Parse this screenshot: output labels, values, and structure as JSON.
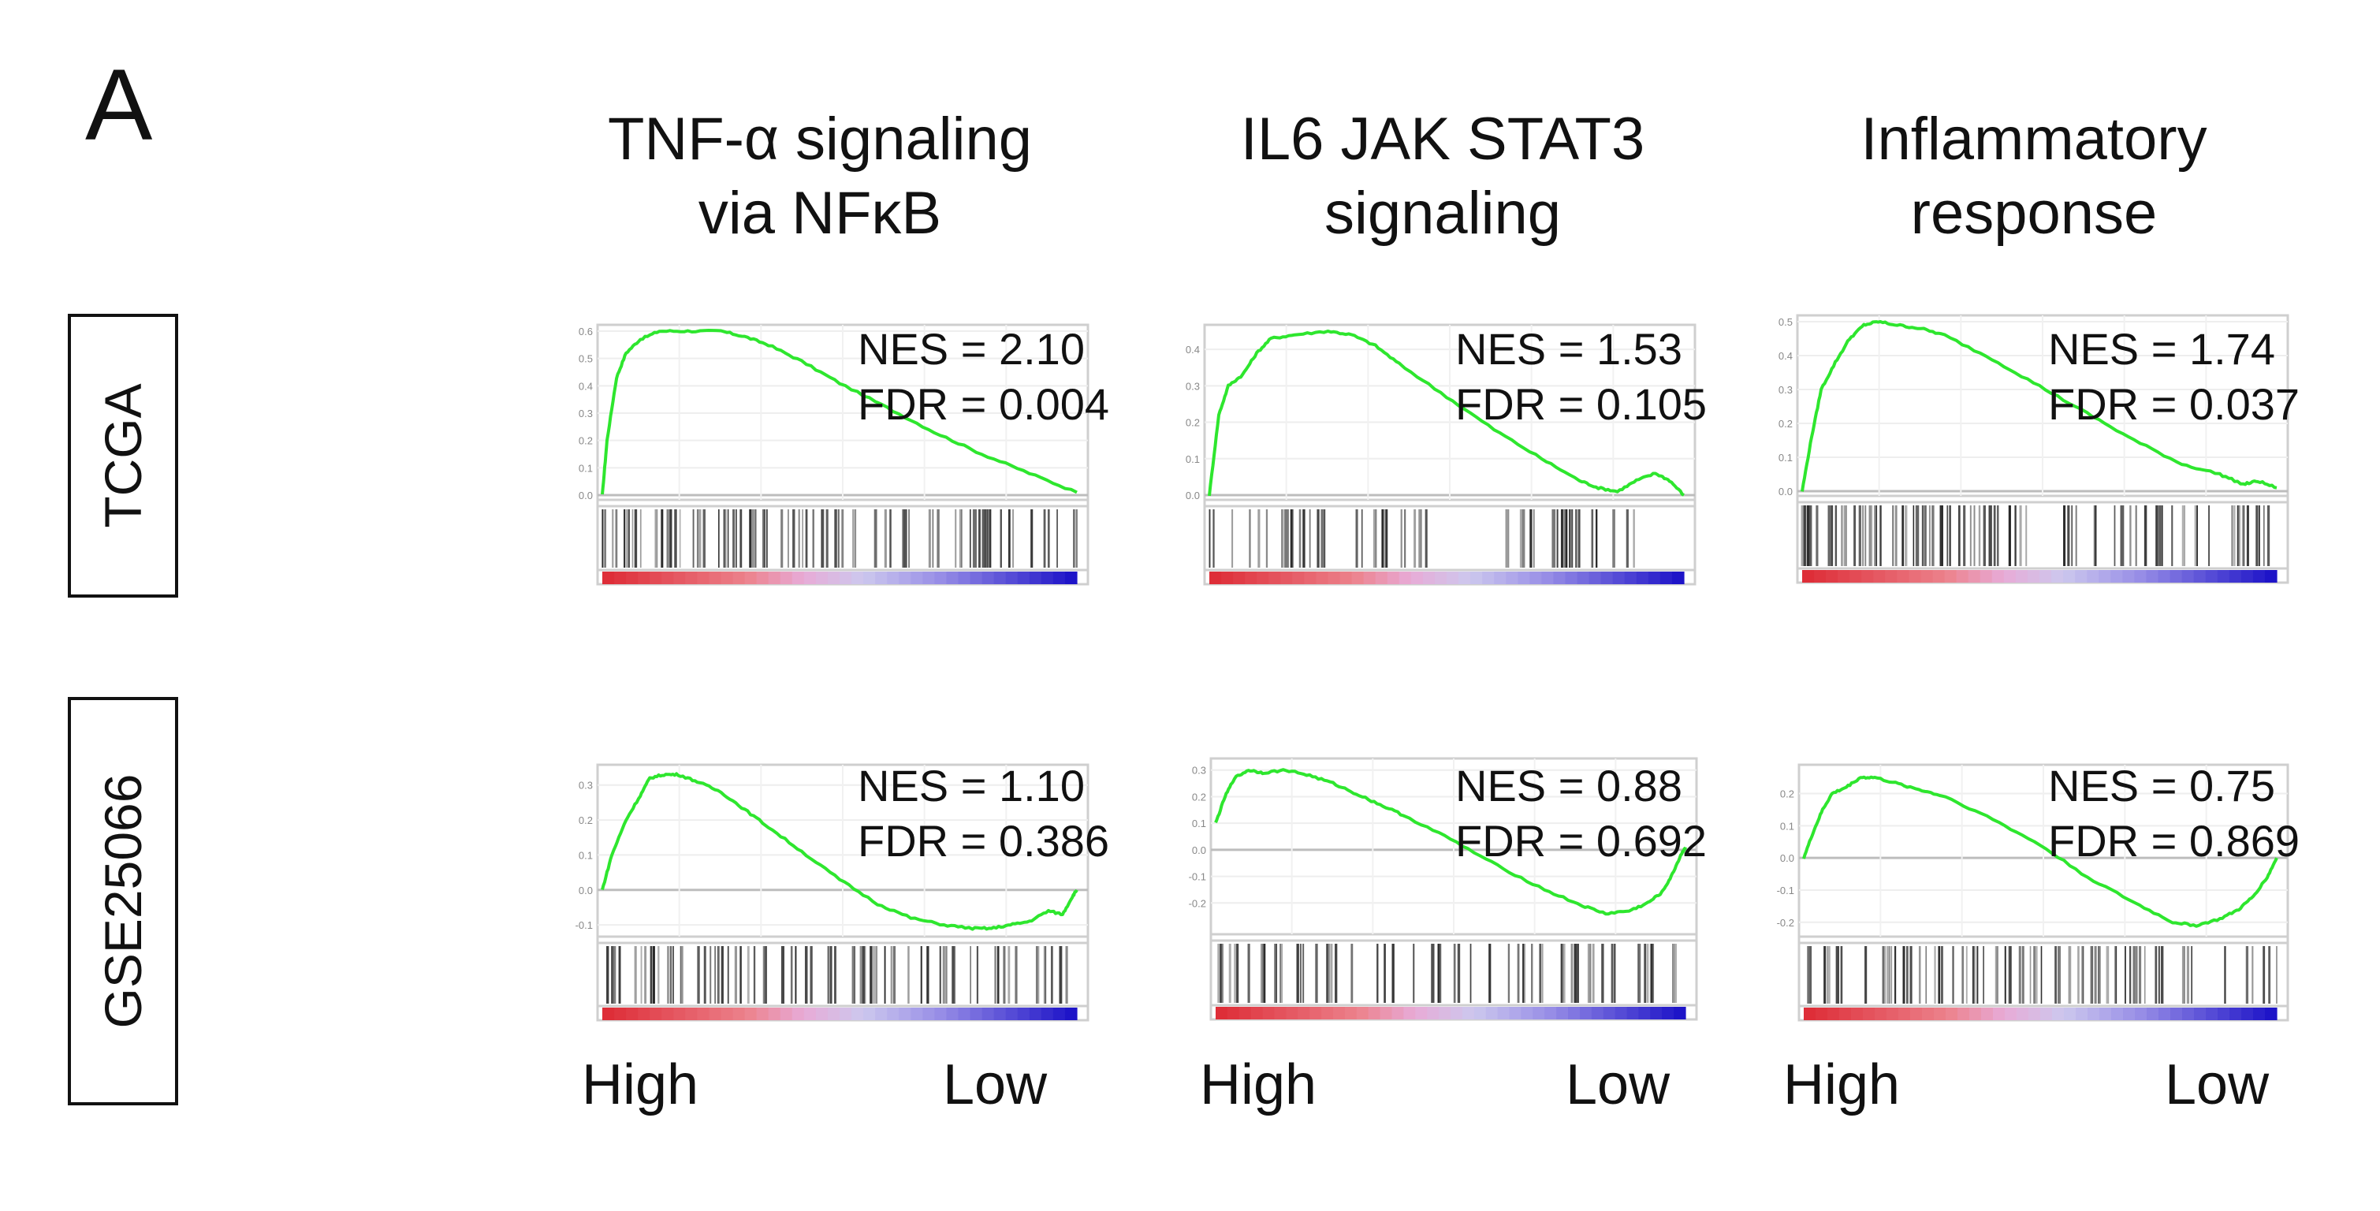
{
  "panel_label": "A",
  "columns": [
    {
      "title_line1": "TNF-α signaling",
      "title_line2": "via NFκB"
    },
    {
      "title_line1": "IL6 JAK STAT3",
      "title_line2": "signaling"
    },
    {
      "title_line1": "Inflammatory",
      "title_line2": "response"
    }
  ],
  "rows": [
    {
      "label": "TCGA"
    },
    {
      "label": "GSE25066"
    }
  ],
  "axis_ends": {
    "left": "High",
    "right": "Low"
  },
  "colors": {
    "curve": "#2ee62e",
    "frame": "#cfcfcf",
    "high": "#e0343c",
    "low": "#1b14c8"
  },
  "chart_data": [
    {
      "type": "line",
      "title": "TNF-α signaling via NFκB — TCGA",
      "nes_text": "NES = 2.10",
      "fdr_text": "FDR = 0.004",
      "ylim": [
        0,
        0.6
      ],
      "yticks": [
        0.0,
        0.1,
        0.2,
        0.3,
        0.4,
        0.5,
        0.6
      ],
      "es_x": [
        0,
        0.01,
        0.03,
        0.05,
        0.08,
        0.12,
        0.18,
        0.25,
        0.3,
        0.35,
        0.42,
        0.5,
        0.6,
        0.7,
        0.8,
        0.9,
        1.0
      ],
      "es_y": [
        0.0,
        0.2,
        0.43,
        0.52,
        0.57,
        0.6,
        0.6,
        0.6,
        0.58,
        0.55,
        0.49,
        0.41,
        0.32,
        0.23,
        0.15,
        0.08,
        0.01
      ],
      "hit_density": "front"
    },
    {
      "type": "line",
      "title": "IL6 JAK STAT3 signaling — TCGA",
      "nes_text": "NES = 1.53",
      "fdr_text": "FDR = 0.105",
      "ylim": [
        0,
        0.45
      ],
      "yticks": [
        0.0,
        0.1,
        0.2,
        0.3,
        0.4
      ],
      "es_x": [
        0,
        0.02,
        0.04,
        0.07,
        0.1,
        0.13,
        0.18,
        0.25,
        0.3,
        0.35,
        0.4,
        0.5,
        0.6,
        0.7,
        0.78,
        0.82,
        0.86,
        0.9,
        0.94,
        0.97,
        1.0
      ],
      "es_y": [
        0.0,
        0.22,
        0.3,
        0.33,
        0.39,
        0.43,
        0.44,
        0.45,
        0.44,
        0.41,
        0.36,
        0.27,
        0.18,
        0.1,
        0.04,
        0.02,
        0.01,
        0.04,
        0.06,
        0.04,
        0.0
      ],
      "hit_density": "gapped"
    },
    {
      "type": "line",
      "title": "Inflammatory response — TCGA",
      "nes_text": "NES = 1.74",
      "fdr_text": "FDR = 0.037",
      "ylim": [
        0,
        0.5
      ],
      "yticks": [
        0.0,
        0.1,
        0.2,
        0.3,
        0.4,
        0.5
      ],
      "es_x": [
        0,
        0.02,
        0.04,
        0.07,
        0.1,
        0.13,
        0.16,
        0.2,
        0.25,
        0.3,
        0.4,
        0.5,
        0.6,
        0.7,
        0.8,
        0.88,
        0.93,
        0.96,
        1.0
      ],
      "es_y": [
        0.0,
        0.16,
        0.3,
        0.38,
        0.45,
        0.49,
        0.5,
        0.49,
        0.48,
        0.46,
        0.39,
        0.31,
        0.23,
        0.15,
        0.08,
        0.05,
        0.02,
        0.03,
        0.01
      ],
      "hit_density": "front"
    },
    {
      "type": "line",
      "title": "TNF-α signaling via NFκB — GSE25066",
      "nes_text": "NES = 1.10",
      "fdr_text": "FDR = 0.386",
      "ylim": [
        -0.12,
        0.34
      ],
      "yticks": [
        -0.1,
        0.0,
        0.1,
        0.2,
        0.3
      ],
      "es_x": [
        0,
        0.02,
        0.05,
        0.08,
        0.1,
        0.13,
        0.16,
        0.2,
        0.25,
        0.3,
        0.35,
        0.42,
        0.5,
        0.58,
        0.65,
        0.72,
        0.78,
        0.82,
        0.86,
        0.9,
        0.94,
        0.97,
        0.99,
        1.0
      ],
      "es_y": [
        0.0,
        0.1,
        0.2,
        0.27,
        0.32,
        0.33,
        0.33,
        0.31,
        0.28,
        0.23,
        0.18,
        0.11,
        0.03,
        -0.04,
        -0.08,
        -0.1,
        -0.11,
        -0.11,
        -0.1,
        -0.09,
        -0.06,
        -0.07,
        -0.02,
        0.0
      ],
      "hit_density": "even"
    },
    {
      "type": "line",
      "title": "IL6 JAK STAT3 signaling — GSE25066",
      "nes_text": "NES = 0.88",
      "fdr_text": "FDR = 0.692",
      "ylim": [
        -0.3,
        0.32
      ],
      "yticks": [
        -0.2,
        -0.1,
        0.0,
        0.1,
        0.2,
        0.3
      ],
      "es_x": [
        0,
        0.02,
        0.04,
        0.07,
        0.1,
        0.15,
        0.2,
        0.25,
        0.3,
        0.35,
        0.4,
        0.5,
        0.6,
        0.7,
        0.78,
        0.83,
        0.88,
        0.92,
        0.95,
        0.97,
        0.99,
        1.0
      ],
      "es_y": [
        0.1,
        0.2,
        0.27,
        0.3,
        0.29,
        0.3,
        0.28,
        0.25,
        0.21,
        0.17,
        0.13,
        0.04,
        -0.06,
        -0.15,
        -0.21,
        -0.24,
        -0.23,
        -0.2,
        -0.16,
        -0.1,
        -0.02,
        0.01
      ],
      "hit_density": "even"
    },
    {
      "type": "line",
      "title": "Inflammatory response — GSE25066",
      "nes_text": "NES = 0.75",
      "fdr_text": "FDR = 0.869",
      "ylim": [
        -0.23,
        0.27
      ],
      "yticks": [
        -0.2,
        -0.1,
        0.0,
        0.1,
        0.2
      ],
      "es_x": [
        0,
        0.02,
        0.04,
        0.06,
        0.09,
        0.12,
        0.15,
        0.2,
        0.25,
        0.3,
        0.4,
        0.5,
        0.6,
        0.7,
        0.78,
        0.83,
        0.88,
        0.92,
        0.95,
        0.98,
        1.0
      ],
      "es_y": [
        0.0,
        0.08,
        0.15,
        0.2,
        0.22,
        0.25,
        0.25,
        0.23,
        0.21,
        0.19,
        0.12,
        0.04,
        -0.06,
        -0.14,
        -0.2,
        -0.21,
        -0.19,
        -0.16,
        -0.12,
        -0.06,
        0.0
      ],
      "hit_density": "even"
    }
  ]
}
